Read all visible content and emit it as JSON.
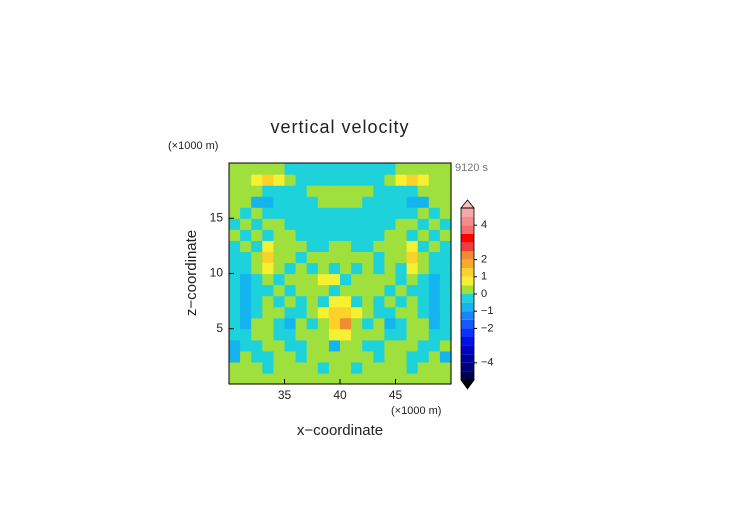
{
  "chart_data": {
    "type": "contour",
    "title": "vertical velocity",
    "time_label": "9120 s",
    "x_label": "x−coordinate",
    "y_label": "z−coordinate",
    "x_unit": "(×1000 m)",
    "y_unit": "(×1000 m)",
    "xlim": [
      30,
      50
    ],
    "ylim": [
      0,
      20
    ],
    "xticks": [
      35,
      40,
      45
    ],
    "yticks": [
      5,
      10,
      15
    ],
    "x": [
      30.5,
      31.5,
      32.5,
      33.5,
      34.5,
      35.5,
      36.5,
      37.5,
      38.5,
      39.5,
      40.5,
      41.5,
      42.5,
      43.5,
      44.5,
      45.5,
      46.5,
      47.5,
      48.5,
      49.5
    ],
    "y": [
      0.5,
      1.5,
      2.5,
      3.5,
      4.5,
      5.5,
      6.5,
      7.5,
      8.5,
      9.5,
      10.5,
      11.5,
      12.5,
      13.5,
      14.5,
      15.5,
      16.5,
      17.5,
      18.5,
      19.5
    ],
    "z": [
      [
        0.2,
        0.2,
        0.2,
        0.2,
        0.2,
        0.2,
        0.2,
        0.2,
        0.2,
        0.2,
        0.2,
        0.2,
        0.2,
        0.2,
        0.2,
        0.2,
        0.2,
        0.2,
        0.2,
        0.2
      ],
      [
        0.2,
        0.2,
        0.2,
        -0.2,
        0.2,
        0.2,
        0.2,
        0.2,
        -0.2,
        0.2,
        0.2,
        -0.2,
        0.2,
        0.2,
        0.2,
        0.2,
        -0.2,
        0.2,
        0.2,
        0.2
      ],
      [
        -0.7,
        0.2,
        -0.2,
        -0.2,
        0.2,
        0.2,
        -0.2,
        0.2,
        0.2,
        0.2,
        0.2,
        0.2,
        0.2,
        -0.2,
        0.2,
        0.2,
        -0.2,
        -0.2,
        0.2,
        -0.7
      ],
      [
        -0.7,
        -0.2,
        -0.2,
        0.2,
        0.2,
        -0.2,
        -0.2,
        0.2,
        0.2,
        -0.7,
        0.2,
        0.2,
        -0.2,
        -0.2,
        0.2,
        0.2,
        0.2,
        -0.2,
        -0.2,
        0.2
      ],
      [
        -0.2,
        -0.2,
        0.2,
        0.2,
        -0.2,
        -0.2,
        0.2,
        0.2,
        0.2,
        0.7,
        0.7,
        0.2,
        0.2,
        0.2,
        -0.2,
        -0.2,
        0.2,
        0.2,
        -0.2,
        -0.2
      ],
      [
        -0.2,
        -0.7,
        0.2,
        0.2,
        -0.2,
        -0.7,
        0.2,
        -0.2,
        0.2,
        1.2,
        2.2,
        0.2,
        -0.2,
        0.2,
        -0.7,
        -0.2,
        0.2,
        0.2,
        -0.7,
        -0.2
      ],
      [
        -0.2,
        -0.7,
        -0.2,
        0.2,
        0.2,
        -0.2,
        -0.2,
        0.2,
        0.7,
        1.2,
        1.2,
        0.7,
        0.2,
        -0.2,
        -0.2,
        0.2,
        0.2,
        -0.2,
        -0.7,
        -0.2
      ],
      [
        -0.2,
        -0.7,
        -0.2,
        0.2,
        -0.2,
        0.2,
        -0.2,
        0.2,
        -0.2,
        0.7,
        0.7,
        -0.2,
        0.2,
        -0.2,
        0.2,
        -0.2,
        0.2,
        -0.2,
        -0.7,
        -0.2
      ],
      [
        -0.2,
        -0.7,
        -0.2,
        -0.2,
        0.2,
        -0.2,
        0.2,
        0.2,
        0.2,
        -0.2,
        0.2,
        0.2,
        0.2,
        0.2,
        -0.2,
        0.2,
        -0.2,
        -0.2,
        -0.7,
        -0.2
      ],
      [
        -0.2,
        -0.7,
        -0.2,
        0.2,
        -0.2,
        0.2,
        0.2,
        0.2,
        0.7,
        0.7,
        -0.2,
        0.2,
        0.2,
        0.2,
        0.2,
        -0.2,
        0.2,
        -0.2,
        -0.7,
        -0.2
      ],
      [
        -0.2,
        -0.2,
        0.2,
        0.7,
        0.2,
        -0.2,
        0.2,
        -0.2,
        0.2,
        -0.2,
        0.2,
        -0.2,
        0.2,
        -0.2,
        0.2,
        -0.2,
        0.7,
        0.2,
        -0.2,
        -0.2
      ],
      [
        -0.2,
        -0.2,
        0.2,
        1.2,
        0.2,
        0.2,
        -0.2,
        0.2,
        0.2,
        0.2,
        0.2,
        0.2,
        0.2,
        -0.2,
        0.2,
        0.2,
        1.2,
        0.2,
        -0.2,
        -0.2
      ],
      [
        -0.2,
        0.2,
        -0.2,
        0.7,
        0.2,
        0.2,
        0.2,
        -0.2,
        -0.2,
        0.2,
        0.2,
        -0.2,
        -0.2,
        0.2,
        0.2,
        0.2,
        0.7,
        -0.2,
        0.2,
        -0.2
      ],
      [
        0.2,
        -0.2,
        0.2,
        -0.2,
        0.2,
        0.2,
        -0.2,
        -0.2,
        -0.2,
        -0.2,
        -0.2,
        -0.2,
        -0.2,
        -0.2,
        0.2,
        0.2,
        -0.2,
        0.2,
        -0.2,
        0.2
      ],
      [
        -0.2,
        0.2,
        -0.2,
        0.2,
        0.2,
        -0.2,
        -0.2,
        -0.2,
        -0.2,
        -0.2,
        -0.2,
        -0.2,
        -0.2,
        -0.2,
        -0.2,
        0.2,
        0.2,
        -0.2,
        0.2,
        -0.2
      ],
      [
        0.2,
        -0.2,
        0.2,
        -0.2,
        -0.2,
        -0.2,
        -0.2,
        -0.2,
        -0.2,
        -0.2,
        -0.2,
        -0.2,
        -0.2,
        -0.2,
        -0.2,
        -0.2,
        -0.2,
        0.2,
        -0.2,
        0.2
      ],
      [
        0.2,
        0.2,
        -0.7,
        -0.7,
        -0.2,
        -0.2,
        -0.2,
        -0.2,
        0.2,
        0.2,
        0.2,
        0.2,
        -0.2,
        -0.2,
        -0.2,
        -0.2,
        -0.7,
        -0.7,
        0.2,
        0.2
      ],
      [
        0.2,
        0.2,
        0.2,
        -0.2,
        -0.2,
        -0.2,
        -0.2,
        0.2,
        0.2,
        0.2,
        0.2,
        0.2,
        0.2,
        -0.2,
        -0.2,
        -0.2,
        -0.2,
        0.2,
        0.2,
        0.2
      ],
      [
        0.2,
        0.2,
        0.7,
        1.2,
        0.7,
        0.2,
        -0.2,
        -0.2,
        -0.2,
        -0.2,
        -0.2,
        -0.2,
        -0.2,
        -0.2,
        0.2,
        0.7,
        1.2,
        0.7,
        0.2,
        0.2
      ],
      [
        0.2,
        0.2,
        0.2,
        0.2,
        0.2,
        -0.2,
        -0.2,
        -0.2,
        -0.2,
        -0.2,
        -0.2,
        -0.2,
        -0.2,
        -0.2,
        -0.2,
        0.2,
        0.2,
        0.2,
        0.2,
        0.2
      ]
    ],
    "levels": [
      -5,
      -4.5,
      -4,
      -3.5,
      -3,
      -2.5,
      -2,
      -1.5,
      -1,
      -0.5,
      0,
      0.5,
      1,
      1.5,
      2,
      2.5,
      3,
      3.5,
      4,
      4.5,
      5
    ],
    "colors": [
      "#000050",
      "#00007a",
      "#0000a0",
      "#0000c8",
      "#0010e6",
      "#0a32ff",
      "#145aff",
      "#1e82ff",
      "#14b4f0",
      "#1ed2dc",
      "#a0e03c",
      "#f5f032",
      "#fad228",
      "#f5aa28",
      "#f08c32",
      "#f03c3c",
      "#ff0000",
      "#f46e6e",
      "#f58c8c",
      "#f8a8a8"
    ],
    "over_color": "#fac0c0",
    "under_color": "#000000",
    "colorbar_ticks": [
      4,
      2,
      1,
      0,
      {
        "value": -1,
        "label": "−1"
      },
      {
        "value": -2,
        "label": "−2"
      },
      {
        "value": -4,
        "label": "−4"
      }
    ]
  }
}
